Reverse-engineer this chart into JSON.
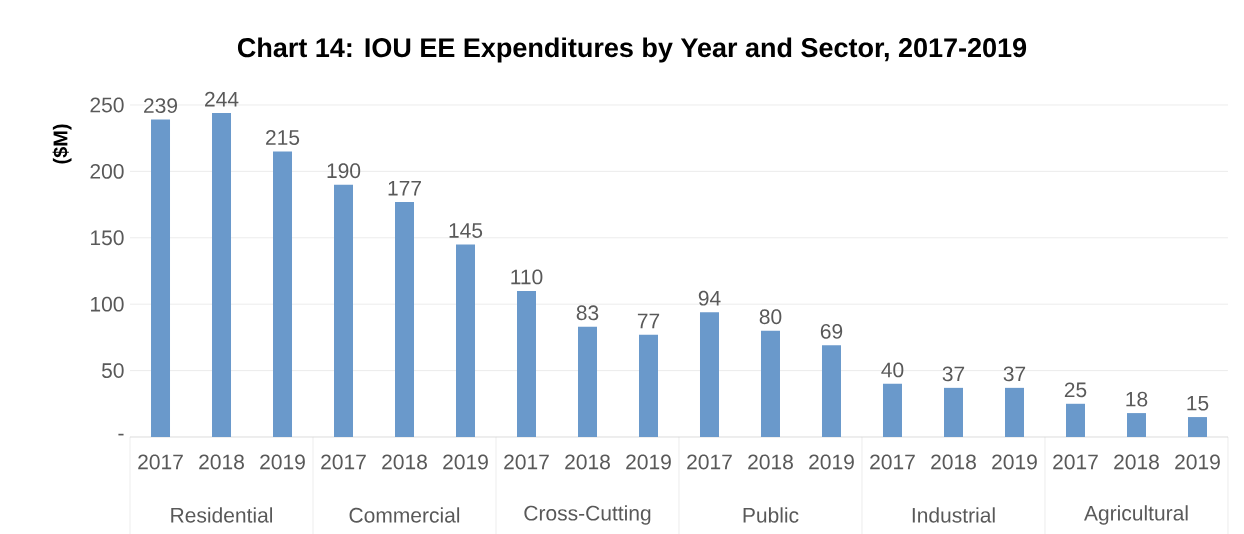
{
  "chart_data": {
    "type": "bar",
    "title": "Chart 14: IOU EE Expenditures by Year and Sector, 2017-2019",
    "ylabel": "($M)",
    "categories": [
      "2017",
      "2018",
      "2019",
      "2017",
      "2018",
      "2019",
      "2017",
      "2018",
      "2019",
      "2017",
      "2018",
      "2019",
      "2017",
      "2018",
      "2019",
      "2017",
      "2018",
      "2019"
    ],
    "values": [
      239,
      244,
      215,
      190,
      177,
      145,
      110,
      83,
      77,
      94,
      80,
      69,
      40,
      37,
      37,
      25,
      18,
      15
    ],
    "color": "#6a99cb",
    "data_labels": true,
    "grid": "y",
    "ylim": [
      0,
      250
    ],
    "yticks": [
      {
        "value": 0,
        "label": "-"
      },
      50,
      100,
      150,
      200,
      250
    ],
    "annotations": [
      "Residential",
      "Commercial",
      "Cross-Cutting",
      "Public",
      "Industrial",
      "Agricultural"
    ]
  }
}
